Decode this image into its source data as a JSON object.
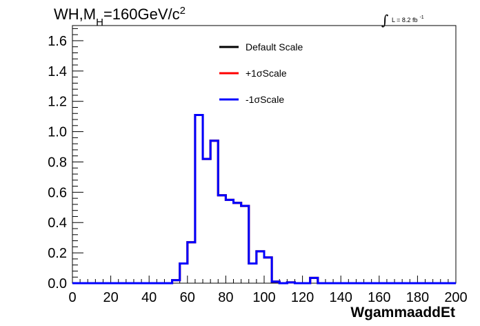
{
  "chart_data": {
    "type": "line",
    "title": {
      "main": "WH,M",
      "subscript": "H",
      "rest": "=160GeV/c",
      "superscript": "2"
    },
    "luminosity": {
      "integral_symbol": "∫",
      "text": "L = 8.2 fb",
      "superscript": "-1"
    },
    "xlabel": "WgammaaddEt",
    "ylabel": "",
    "xlim": [
      0,
      200
    ],
    "ylim": [
      0,
      1.7
    ],
    "x_ticks": [
      0,
      20,
      40,
      60,
      80,
      100,
      120,
      140,
      160,
      180,
      200
    ],
    "x_tick_labels": [
      "0",
      "20",
      "40",
      "60",
      "80",
      "100",
      "120",
      "140",
      "160",
      "180",
      "200"
    ],
    "y_ticks": [
      0,
      0.2,
      0.4,
      0.6,
      0.8,
      1.0,
      1.2,
      1.4,
      1.6
    ],
    "y_tick_labels": [
      "0.0",
      "0.2",
      "0.4",
      "0.6",
      "0.8",
      "1.0",
      "1.2",
      "1.4",
      "1.6"
    ],
    "legend_position": "top-center",
    "bin_edges": [
      0,
      4,
      8,
      12,
      16,
      20,
      24,
      28,
      32,
      36,
      40,
      44,
      48,
      52,
      56,
      60,
      64,
      68,
      72,
      76,
      80,
      84,
      88,
      92,
      96,
      100,
      104,
      108,
      112,
      116,
      120,
      124,
      128,
      132,
      136,
      140,
      144,
      148,
      152,
      156,
      160,
      164,
      168,
      172,
      176,
      180,
      184,
      188,
      192,
      196,
      200
    ],
    "series": [
      {
        "name": "Default Scale",
        "color": "#000000",
        "values": [
          0,
          0,
          0,
          0,
          0,
          0,
          0,
          0,
          0,
          0,
          0,
          0,
          0,
          0.02,
          0.13,
          0.27,
          1.11,
          0.82,
          0.94,
          0.58,
          0.55,
          0.53,
          0.51,
          0.13,
          0.21,
          0.17,
          0.01,
          0,
          0.005,
          0,
          0,
          0.035,
          0,
          0,
          0,
          0,
          0,
          0,
          0,
          0,
          0,
          0,
          0,
          0,
          0,
          0,
          0,
          0,
          0,
          0
        ]
      },
      {
        "name": "+1σScale",
        "color": "#ff0000",
        "values": [
          0,
          0,
          0,
          0,
          0,
          0,
          0,
          0,
          0,
          0,
          0,
          0,
          0,
          0.02,
          0.13,
          0.27,
          1.11,
          0.82,
          0.94,
          0.58,
          0.55,
          0.53,
          0.51,
          0.13,
          0.21,
          0.17,
          0.01,
          0,
          0.005,
          0,
          0,
          0.035,
          0,
          0,
          0,
          0,
          0,
          0,
          0,
          0,
          0,
          0,
          0,
          0,
          0,
          0,
          0,
          0,
          0,
          0
        ]
      },
      {
        "name": "-1σScale",
        "color": "#0000ff",
        "values": [
          0,
          0,
          0,
          0,
          0,
          0,
          0,
          0,
          0,
          0,
          0,
          0,
          0,
          0.02,
          0.13,
          0.27,
          1.11,
          0.82,
          0.94,
          0.58,
          0.55,
          0.53,
          0.51,
          0.13,
          0.21,
          0.17,
          0.01,
          0,
          0.005,
          0,
          0,
          0.035,
          0,
          0,
          0,
          0,
          0,
          0,
          0,
          0,
          0,
          0,
          0,
          0,
          0,
          0,
          0,
          0,
          0,
          0
        ]
      }
    ]
  }
}
